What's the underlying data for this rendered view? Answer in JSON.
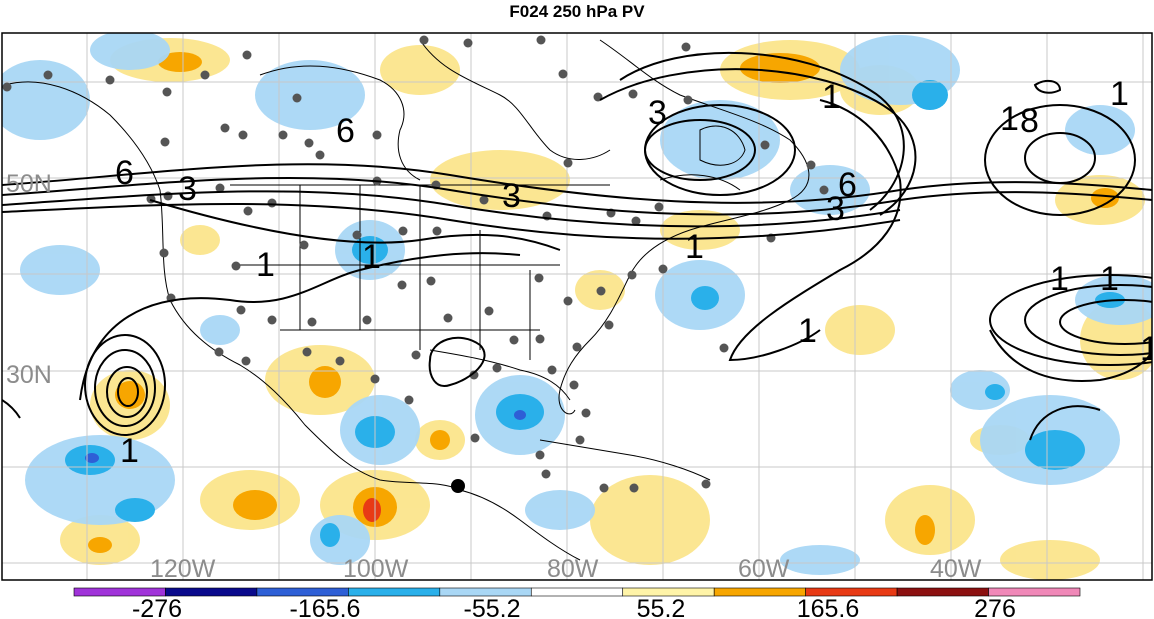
{
  "title": "F024 250 hPa PV",
  "longitude_labels": [
    "120W",
    "100W",
    "80W",
    "60W",
    "40W"
  ],
  "latitude_labels": [
    "50N",
    "30N"
  ],
  "colorbar": {
    "colors": [
      "#a033d9",
      "#0a0a8c",
      "#2e5fd6",
      "#2ab0ea",
      "#a9d7f5",
      "#ffffff",
      "#fff4a8",
      "#f7a600",
      "#e83a15",
      "#8c1010",
      "#f088b8"
    ],
    "labels": [
      "-276",
      "-165.6",
      "-55.2",
      "55.2",
      "165.6",
      "276"
    ]
  },
  "contour_labels": [
    "6",
    "3",
    "6",
    "3",
    "1",
    "1",
    "1",
    "1",
    "3",
    "6",
    "1",
    "1",
    "3",
    "1",
    "1",
    "1",
    "8",
    "1",
    "1"
  ],
  "colors": {
    "positive": "#fbe58c",
    "positive_strong": "#f7a600",
    "negative": "#a9d7f5",
    "negative_strong": "#2ab0ea",
    "contour": "#000000",
    "station": "#555555"
  }
}
